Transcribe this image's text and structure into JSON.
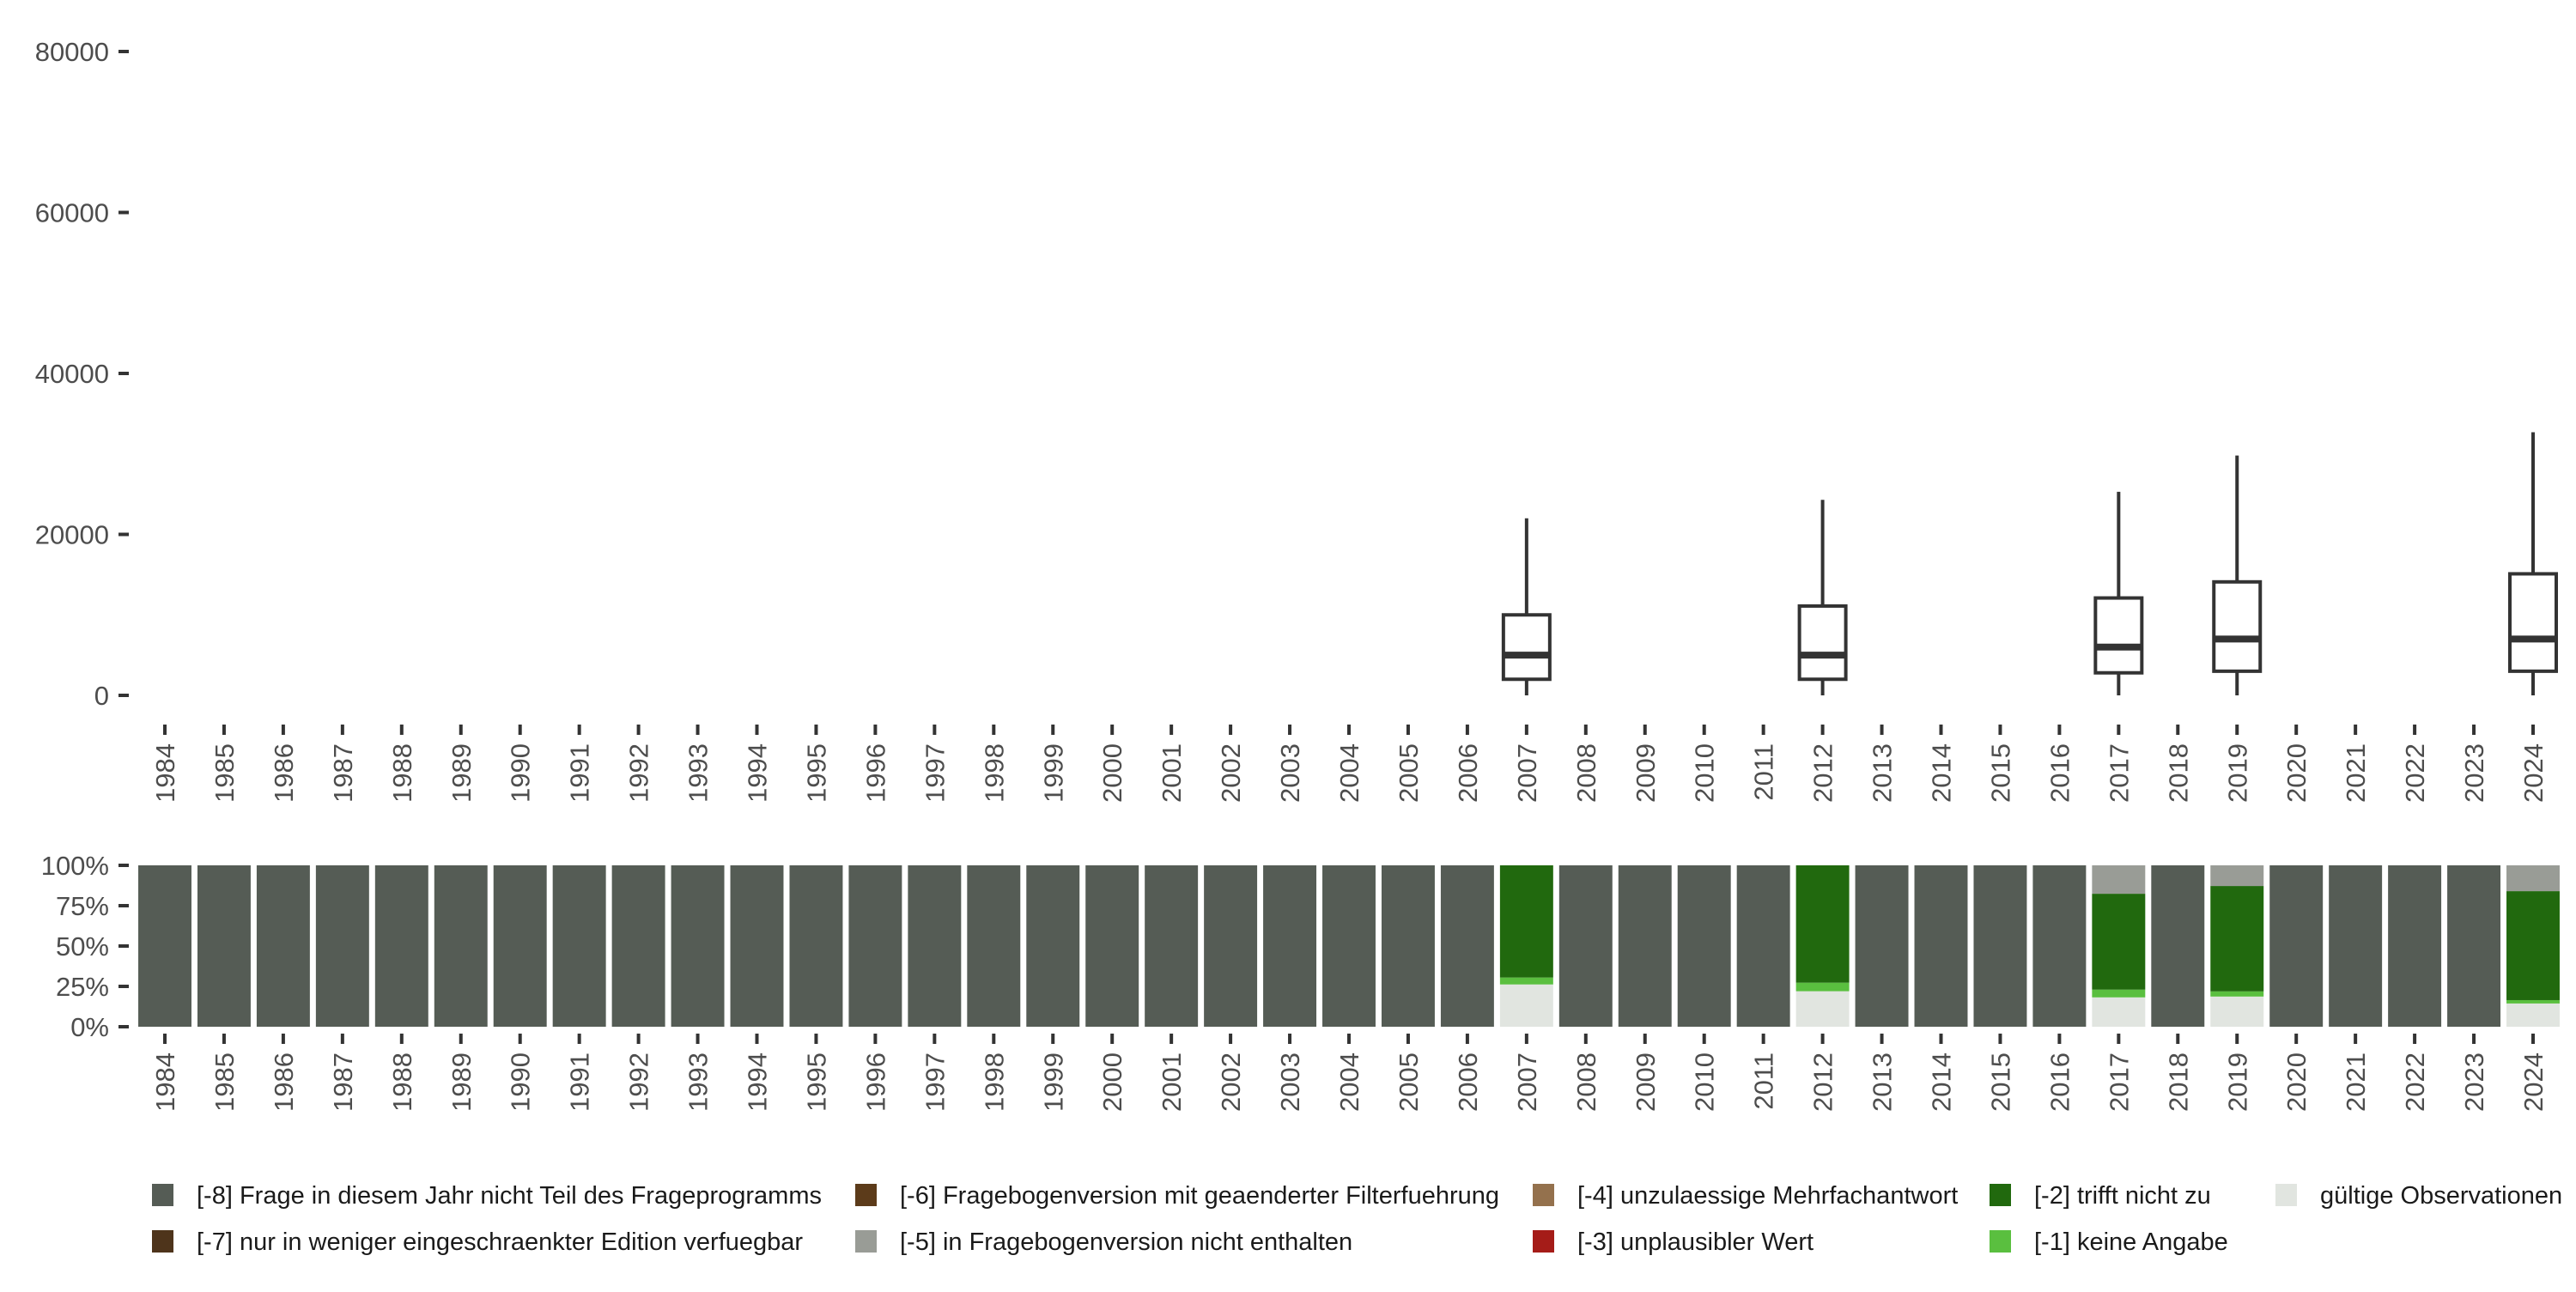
{
  "chart_data": [
    {
      "type": "boxplot",
      "title": "",
      "xlabel": "",
      "ylabel": "",
      "ylim": [
        0,
        80000
      ],
      "yticks": [
        "0",
        "20000",
        "40000",
        "60000",
        "80000"
      ],
      "yticks_values": [
        0,
        20000,
        40000,
        60000,
        80000
      ],
      "categories": [
        "1984",
        "1985",
        "1986",
        "1987",
        "1988",
        "1989",
        "1990",
        "1991",
        "1992",
        "1993",
        "1994",
        "1995",
        "1996",
        "1997",
        "1998",
        "1999",
        "2000",
        "2001",
        "2002",
        "2003",
        "2004",
        "2005",
        "2006",
        "2007",
        "2008",
        "2009",
        "2010",
        "2011",
        "2012",
        "2013",
        "2014",
        "2015",
        "2016",
        "2017",
        "2018",
        "2019",
        "2020",
        "2021",
        "2022",
        "2023",
        "2024"
      ],
      "boxes": [
        {
          "year": "2007",
          "min": 0,
          "q1": 2000,
          "median": 5000,
          "q3": 10000,
          "max": 22000
        },
        {
          "year": "2012",
          "min": 0,
          "q1": 2000,
          "median": 5000,
          "q3": 11100,
          "max": 24300
        },
        {
          "year": "2017",
          "min": 0,
          "q1": 2800,
          "median": 6000,
          "q3": 12100,
          "max": 25300
        },
        {
          "year": "2019",
          "min": 0,
          "q1": 3000,
          "median": 7000,
          "q3": 14100,
          "max": 29800
        },
        {
          "year": "2024",
          "min": 0,
          "q1": 3000,
          "median": 7000,
          "q3": 15100,
          "max": 32700
        }
      ],
      "grid": false
    },
    {
      "type": "bar",
      "stacked": true,
      "ylim": [
        0,
        100
      ],
      "yticks": [
        "0%",
        "25%",
        "50%",
        "75%",
        "100%"
      ],
      "yticks_values": [
        0,
        25,
        50,
        75,
        100
      ],
      "categories": [
        "1984",
        "1985",
        "1986",
        "1987",
        "1988",
        "1989",
        "1990",
        "1991",
        "1992",
        "1993",
        "1994",
        "1995",
        "1996",
        "1997",
        "1998",
        "1999",
        "2000",
        "2001",
        "2002",
        "2003",
        "2004",
        "2005",
        "2006",
        "2007",
        "2008",
        "2009",
        "2010",
        "2011",
        "2012",
        "2013",
        "2014",
        "2015",
        "2016",
        "2017",
        "2018",
        "2019",
        "2020",
        "2021",
        "2022",
        "2023",
        "2024"
      ],
      "series_order_bottom_to_top": [
        "valid",
        "-1",
        "-2",
        "-5",
        "-8"
      ],
      "series": [
        {
          "key": "-8",
          "name": "[-8] Frage in diesem Jahr nicht Teil des Frageprogramms",
          "color": "#555c55"
        },
        {
          "key": "-7",
          "name": "[-7] nur in weniger eingeschraenkter Edition verfuegbar",
          "color": "#4e341b"
        },
        {
          "key": "-6",
          "name": "[-6] Fragebogenversion mit geaenderter Filterfuehrung",
          "color": "#5c3b1a"
        },
        {
          "key": "-5",
          "name": "[-5] in Fragebogenversion nicht enthalten",
          "color": "#999c96"
        },
        {
          "key": "-4",
          "name": "[-4] unzulaessige Mehrfachantwort",
          "color": "#94714d"
        },
        {
          "key": "-3",
          "name": "[-3] unplausibler Wert",
          "color": "#a51c18"
        },
        {
          "key": "-2",
          "name": "[-2] trifft nicht zu",
          "color": "#21690e"
        },
        {
          "key": "-1",
          "name": "[-1] keine Angabe",
          "color": "#5abf3f"
        },
        {
          "key": "valid",
          "name": "gültige Observationen",
          "color": "#e1e5e0"
        }
      ],
      "values_percent": {
        "default": {
          "-8": 100
        },
        "2007": {
          "valid": 26.2,
          "-1": 4.3,
          "-2": 69.5
        },
        "2012": {
          "valid": 22.0,
          "-1": 5.3,
          "-2": 72.7
        },
        "2017": {
          "valid": 18.2,
          "-1": 4.8,
          "-2": 59.4,
          "-5": 17.6
        },
        "2019": {
          "valid": 18.7,
          "-1": 3.2,
          "-2": 65.3,
          "-5": 12.8
        },
        "2024": {
          "valid": 14.4,
          "-1": 2.1,
          "-2": 67.5,
          "-5": 16.0
        }
      },
      "legend_position": "bottom"
    }
  ]
}
